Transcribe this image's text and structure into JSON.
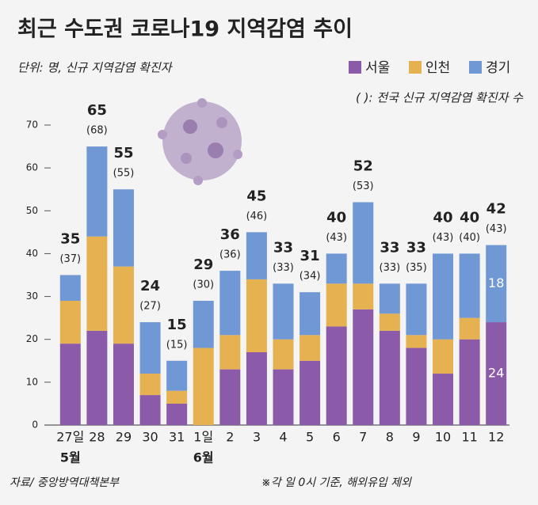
{
  "chart_data": {
    "type": "stacked_bar",
    "title": "최근 수도권 코로나19 지역감염 추이",
    "subtitle": "단위: 명, 신규 지역감염 확진자",
    "note": "( ): 전국 신규 지역감염 확진자 수",
    "source": "자료/ 중앙방역대책본부",
    "footnote": "※각 일 0시 기준, 해외유입 제외",
    "categories": [
      "27일",
      "28",
      "29",
      "30",
      "31",
      "1일",
      "2",
      "3",
      "4",
      "5",
      "6",
      "7",
      "8",
      "9",
      "10",
      "11",
      "12"
    ],
    "months": [
      "5월",
      null,
      null,
      null,
      null,
      "6월",
      null,
      null,
      null,
      null,
      null,
      null,
      null,
      null,
      null,
      null,
      null
    ],
    "series": [
      {
        "name": "서울",
        "color": "#8b5ba9",
        "values": [
          19,
          22,
          19,
          7,
          5,
          0,
          13,
          17,
          13,
          15,
          23,
          27,
          22,
          18,
          12,
          20,
          24
        ]
      },
      {
        "name": "인천",
        "color": "#e6b150",
        "values": [
          10,
          22,
          18,
          5,
          3,
          18,
          8,
          17,
          7,
          6,
          10,
          6,
          4,
          3,
          8,
          5,
          0
        ]
      },
      {
        "name": "경기",
        "color": "#6f98d5",
        "values": [
          6,
          21,
          18,
          12,
          7,
          11,
          15,
          11,
          13,
          10,
          7,
          19,
          7,
          12,
          20,
          15,
          18
        ]
      }
    ],
    "totals": [
      35,
      65,
      55,
      24,
      15,
      29,
      36,
      45,
      33,
      31,
      40,
      52,
      33,
      33,
      40,
      40,
      42
    ],
    "national": {
      "values": [
        37,
        68,
        55,
        27,
        15,
        30,
        36,
        46,
        33,
        34,
        43,
        53,
        33,
        35,
        43,
        40,
        43
      ],
      "value_labels": [
        "(37)",
        "(68)",
        "(55)",
        "(27)",
        "(15)",
        "(30)",
        "(36)",
        "(46)",
        "(33)",
        "(34)",
        "(43)",
        "(53)",
        "(33)",
        "(35)",
        "(43)",
        "(40)",
        "(43)"
      ]
    },
    "ylim": [
      0,
      70
    ],
    "yticks": [
      0,
      10,
      20,
      30,
      40,
      50,
      60,
      70
    ],
    "legend": "top-right"
  }
}
